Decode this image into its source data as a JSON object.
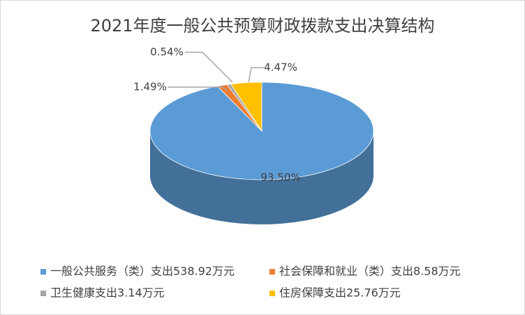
{
  "chart_data": {
    "type": "pie",
    "title": "2021年度一般公共预算财政拨款支出决算结构",
    "categories": [
      "一般公共服务（类）支出538.92万元",
      "社会保障和就业（类）支出8.58万元",
      "卫生健康支出3.14万元",
      "住房保障支出25.76万元"
    ],
    "values": [
      93.5,
      1.49,
      0.54,
      4.47
    ],
    "value_labels": [
      "93.50%",
      "1.49%",
      "0.54%",
      "4.47%"
    ],
    "colors": [
      "#5b9bd5",
      "#ed7d31",
      "#a5a5a5",
      "#ffc000"
    ],
    "legend": "bottom"
  }
}
